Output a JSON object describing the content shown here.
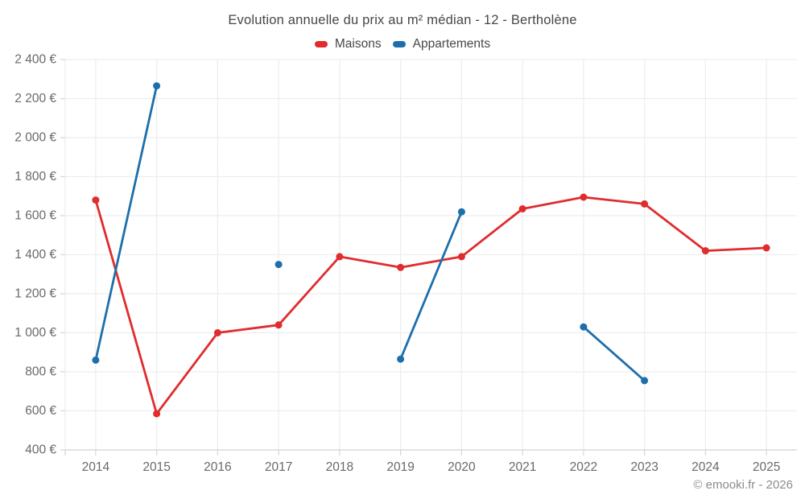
{
  "page": {
    "title": "Evolution annuelle du prix au m² médian - 12 - Bertholène",
    "copyright": "© emooki.fr - 2026"
  },
  "colors": {
    "maisons": "#e02c2d",
    "appartements": "#1d6fab",
    "gridline": "#ededed",
    "axis_line": "#d6d6d6",
    "tick_label": "#696969",
    "title_text": "#474747"
  },
  "chart_data": {
    "type": "line",
    "title": "Evolution annuelle du prix au m² médian - 12 - Bertholène",
    "categories": [
      "2014",
      "2015",
      "2016",
      "2017",
      "2018",
      "2019",
      "2020",
      "2021",
      "2022",
      "2023",
      "2024",
      "2025"
    ],
    "series": [
      {
        "name": "Maisons",
        "color": "#e02c2d",
        "values": [
          1680,
          585,
          1000,
          1040,
          1390,
          1335,
          1390,
          1635,
          1695,
          1660,
          1420,
          1435
        ]
      },
      {
        "name": "Appartements",
        "color": "#1d6fab",
        "values": [
          860,
          2265,
          null,
          1350,
          null,
          865,
          1620,
          null,
          1030,
          755,
          null,
          null
        ]
      }
    ],
    "xlabel": "",
    "ylabel": "",
    "ylim": [
      400,
      2400
    ],
    "ytick_step": 200,
    "ytick_labels": [
      "400 €",
      "600 €",
      "800 €",
      "1 000 €",
      "1 200 €",
      "1 400 €",
      "1 600 €",
      "1 800 €",
      "2 000 €",
      "2 200 €",
      "2 400 €"
    ],
    "grid": true,
    "legend_position": "top"
  }
}
